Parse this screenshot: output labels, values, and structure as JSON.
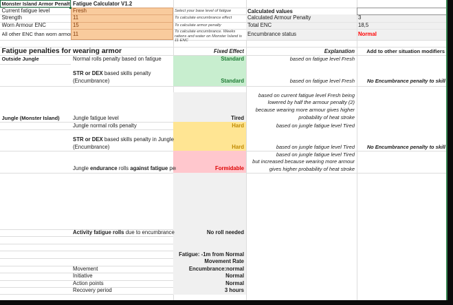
{
  "titles": {
    "a1": "Monster Island Armor Penalty",
    "b1": "Fatigue Calculator V1.2"
  },
  "inputs": {
    "rows": [
      {
        "label": "Current fatigue level",
        "value": "Fresh",
        "note": "Select your base level of fatigue"
      },
      {
        "label": "Strength",
        "value": "11",
        "note": "To calculate encumbrance effect"
      },
      {
        "label": "Worn Armour ENC",
        "value": "15",
        "note": "To calculate armor penalty"
      },
      {
        "label": "All other ENC than worn armor",
        "value": "11",
        "note": "To calculate encumbrance. Weeks rations and water on Monster Island is 11 ENC"
      }
    ]
  },
  "calculated": {
    "header": "Calculated values",
    "rows": [
      {
        "label": "Calculated Armour Penalty",
        "value": "3"
      },
      {
        "label": "Total ENC",
        "value": "18,5"
      },
      {
        "label": "Encumbrance status",
        "value": "Normal"
      }
    ]
  },
  "penalties": {
    "title": "Fatigue penalties for wearing armor",
    "headers": {
      "fixed_effect": "Fixed Effect",
      "explanation": "Explanation",
      "add_modifiers": "Add to other situation modifiers"
    },
    "outside": {
      "section": "Outside Jungle",
      "normal_rolls_label": "Normal rolls penalty based on fatigue",
      "normal_rolls_effect": "Standard",
      "normal_rolls_explanation": "based on fatigue level Fresh",
      "skills_label_segments": [
        {
          "t": "STR or DEX",
          "b": true
        },
        {
          "t": " based skills penalty",
          "b": false
        }
      ],
      "skills_label2": "(Encumbrance)",
      "skills_effect": "Standard",
      "skills_explanation": "based on fatigue level Fresh",
      "skills_modifier": "No Encumbrance penalty to skill"
    },
    "jungle": {
      "section": "Jungle (Monster Island)",
      "fatigue_level_label": "Jungle fatigue level",
      "fatigue_level_value": "Tired",
      "fatigue_level_explanation": "based on current fatigue level Fresh being\nlowered by half the armour penalty (2)\nbecause wearing more armour gives higher\nprobability of heat stroke",
      "normal_rolls_label": "Jungle normal rolls penalty",
      "normal_rolls_effect": "Hard",
      "normal_rolls_explanation": "based on jungle  fatigue level Tired",
      "skills_label_segments": [
        {
          "t": "STR or DEX",
          "b": true
        },
        {
          "t": " based skills penalty in Jungle",
          "b": false
        }
      ],
      "skills_label2": "(Encumbrance)",
      "skills_effect": "Hard",
      "skills_explanation": "based on jungle fatigue level Tired",
      "skills_modifier": "No Encumbrance penalty to skill",
      "endurance_label_segments": [
        {
          "t": "Jungle ",
          "b": false
        },
        {
          "t": "endurance",
          "b": true
        },
        {
          "t": " rolls ",
          "b": false
        },
        {
          "t": "against fatigue",
          "b": true
        },
        {
          "t": " penalty",
          "b": false
        }
      ],
      "endurance_effect": "Formidable",
      "endurance_explanation": "based on jungle fatigue level Tired\nbut increased because wearing more armour\ngives higher probability of heat stroke"
    },
    "activity": {
      "label_segments": [
        {
          "t": "Activity fatigue rolls",
          "b": true
        },
        {
          "t": " due to encumbrance",
          "b": false
        }
      ],
      "effect": "No roll needed"
    },
    "stats": {
      "movement_label": "Movement",
      "movement_block": "Fatigue: -1m from Normal\nMovement Rate\nEncumbrance:normal",
      "initiative_label": "Initiative",
      "initiative_value": "Normal",
      "action_points_label": "Action points",
      "action_points_value": "Normal",
      "recovery_label": "Recovery period",
      "recovery_value": "3 hours"
    }
  },
  "colors": {
    "selection_green": "#217346",
    "input_fill": "#f9cb9d",
    "input_border": "#d89c6a",
    "input_text": "#843c0c",
    "good_fill": "#c8eecf",
    "good_text": "#1e7b34",
    "neutral_fill": "#ffe593",
    "neutral_text": "#c08a00",
    "bad_fill": "#ffc7cd",
    "bad_text": "#dd0000",
    "status_red": "#ff0000",
    "gray_fill": "#f0f0f0",
    "gridline": "#dcdcdc",
    "sheet_edge_green": "#35854f"
  }
}
